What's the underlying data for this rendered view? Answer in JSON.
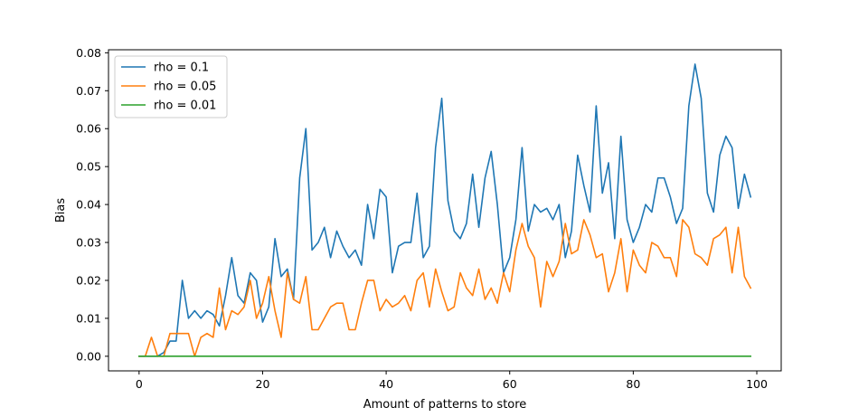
{
  "chart_data": {
    "type": "line",
    "title": "",
    "xlabel": "Amount of patterns to store",
    "ylabel": "Bias",
    "xlim": [
      -4.95,
      103.95
    ],
    "ylim": [
      -0.00385,
      0.0808
    ],
    "xticks": [
      0,
      20,
      40,
      60,
      80,
      100
    ],
    "yticks": [
      0.0,
      0.01,
      0.02,
      0.03,
      0.04,
      0.05,
      0.06,
      0.07,
      0.08
    ],
    "ytick_labels": [
      "0.00",
      "0.01",
      "0.02",
      "0.03",
      "0.04",
      "0.05",
      "0.06",
      "0.07",
      "0.08"
    ],
    "grid": false,
    "legend": "top-left",
    "x": [
      0,
      1,
      2,
      3,
      4,
      5,
      6,
      7,
      8,
      9,
      10,
      11,
      12,
      13,
      14,
      15,
      16,
      17,
      18,
      19,
      20,
      21,
      22,
      23,
      24,
      25,
      26,
      27,
      28,
      29,
      30,
      31,
      32,
      33,
      34,
      35,
      36,
      37,
      38,
      39,
      40,
      41,
      42,
      43,
      44,
      45,
      46,
      47,
      48,
      49,
      50,
      51,
      52,
      53,
      54,
      55,
      56,
      57,
      58,
      59,
      60,
      61,
      62,
      63,
      64,
      65,
      66,
      67,
      68,
      69,
      70,
      71,
      72,
      73,
      74,
      75,
      76,
      77,
      78,
      79,
      80,
      81,
      82,
      83,
      84,
      85,
      86,
      87,
      88,
      89,
      90,
      91,
      92,
      93,
      94,
      95,
      96,
      97,
      98,
      99
    ],
    "series": [
      {
        "name": "rho = 0.1",
        "color": "#1f77b4",
        "values": [
          0,
          0,
          0,
          0,
          0.001,
          0.004,
          0.004,
          0.02,
          0.01,
          0.012,
          0.01,
          0.012,
          0.011,
          0.008,
          0.016,
          0.026,
          0.016,
          0.014,
          0.022,
          0.02,
          0.009,
          0.013,
          0.031,
          0.021,
          0.023,
          0.015,
          0.047,
          0.06,
          0.028,
          0.03,
          0.034,
          0.026,
          0.033,
          0.029,
          0.026,
          0.028,
          0.024,
          0.04,
          0.031,
          0.044,
          0.042,
          0.022,
          0.029,
          0.03,
          0.03,
          0.043,
          0.026,
          0.029,
          0.055,
          0.068,
          0.041,
          0.033,
          0.031,
          0.035,
          0.048,
          0.034,
          0.047,
          0.054,
          0.04,
          0.022,
          0.026,
          0.036,
          0.055,
          0.033,
          0.04,
          0.038,
          0.039,
          0.036,
          0.04,
          0.026,
          0.033,
          0.053,
          0.045,
          0.038,
          0.066,
          0.043,
          0.051,
          0.031,
          0.058,
          0.036,
          0.03,
          0.034,
          0.04,
          0.038,
          0.047,
          0.047,
          0.042,
          0.035,
          0.039,
          0.066,
          0.077,
          0.068,
          0.043,
          0.038,
          0.053,
          0.058,
          0.055,
          0.039,
          0.048,
          0.042
        ]
      },
      {
        "name": "rho = 0.05",
        "color": "#ff7f0e",
        "values": [
          0,
          0,
          0.005,
          0,
          0,
          0.006,
          0.006,
          0.006,
          0.006,
          0,
          0.005,
          0.006,
          0.005,
          0.018,
          0.007,
          0.012,
          0.011,
          0.013,
          0.02,
          0.01,
          0.014,
          0.021,
          0.012,
          0.005,
          0.022,
          0.015,
          0.014,
          0.021,
          0.007,
          0.007,
          0.01,
          0.013,
          0.014,
          0.014,
          0.007,
          0.007,
          0.014,
          0.02,
          0.02,
          0.012,
          0.015,
          0.013,
          0.014,
          0.016,
          0.012,
          0.02,
          0.022,
          0.013,
          0.023,
          0.017,
          0.012,
          0.013,
          0.022,
          0.018,
          0.016,
          0.023,
          0.015,
          0.018,
          0.014,
          0.022,
          0.017,
          0.028,
          0.035,
          0.029,
          0.026,
          0.013,
          0.025,
          0.021,
          0.025,
          0.035,
          0.027,
          0.028,
          0.036,
          0.032,
          0.026,
          0.027,
          0.017,
          0.022,
          0.031,
          0.017,
          0.028,
          0.024,
          0.022,
          0.03,
          0.029,
          0.026,
          0.026,
          0.021,
          0.036,
          0.034,
          0.027,
          0.026,
          0.024,
          0.031,
          0.032,
          0.034,
          0.022,
          0.034,
          0.021,
          0.018
        ]
      },
      {
        "name": "rho = 0.01",
        "color": "#2ca02c",
        "values": [
          0,
          0,
          0,
          0,
          0,
          0,
          0,
          0,
          0,
          0,
          0,
          0,
          0,
          0,
          0,
          0,
          0,
          0,
          0,
          0,
          0,
          0,
          0,
          0,
          0,
          0,
          0,
          0,
          0,
          0,
          0,
          0,
          0,
          0,
          0,
          0,
          0,
          0,
          0,
          0,
          0,
          0,
          0,
          0,
          0,
          0,
          0,
          0,
          0,
          0,
          0,
          0,
          0,
          0,
          0,
          0,
          0,
          0,
          0,
          0,
          0,
          0,
          0,
          0,
          0,
          0,
          0,
          0,
          0,
          0,
          0,
          0,
          0,
          0,
          0,
          0,
          0,
          0,
          0,
          0,
          0,
          0,
          0,
          0,
          0,
          0,
          0,
          0,
          0,
          0,
          0,
          0,
          0,
          0,
          0,
          0,
          0,
          0,
          0,
          0
        ]
      }
    ]
  }
}
